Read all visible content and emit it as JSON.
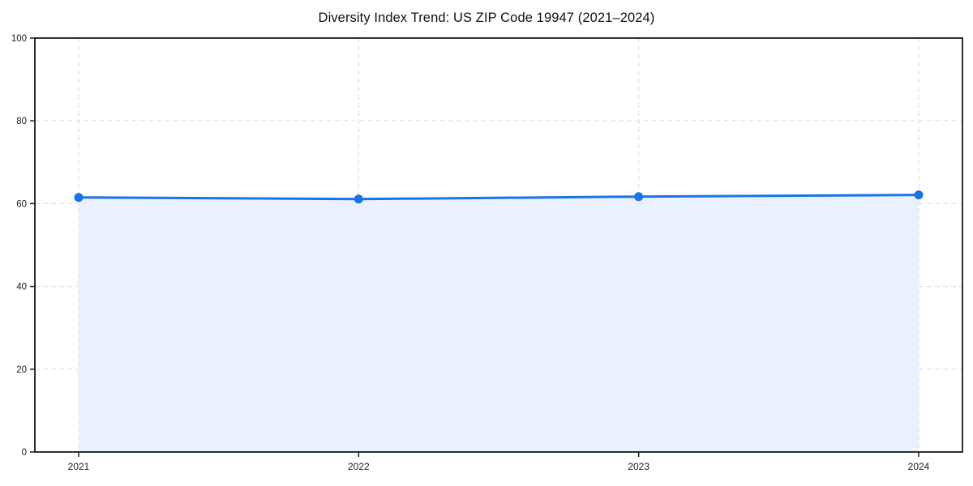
{
  "chart_data": {
    "type": "area",
    "title": "Diversity Index Trend: US ZIP Code 19947 (2021–2024)",
    "categories": [
      "2021",
      "2022",
      "2023",
      "2024"
    ],
    "series": [
      {
        "name": "Diversity Index",
        "values": [
          61.5,
          61.1,
          61.7,
          62.1
        ]
      }
    ],
    "xlabel": "",
    "ylabel": "",
    "ylim": [
      0,
      100
    ],
    "yticks": [
      0,
      20,
      40,
      60,
      80,
      100
    ],
    "grid": true,
    "grid_style": "dashed",
    "legend": false,
    "colors": {
      "line": "#1a73e8",
      "marker": "#1a73e8",
      "fill": "#e8f0fe",
      "grid": "#e0e0e0",
      "axis": "#1a1a1a",
      "tick_text": "#1a1a1a",
      "title_text": "#111111",
      "background": "#ffffff"
    }
  }
}
